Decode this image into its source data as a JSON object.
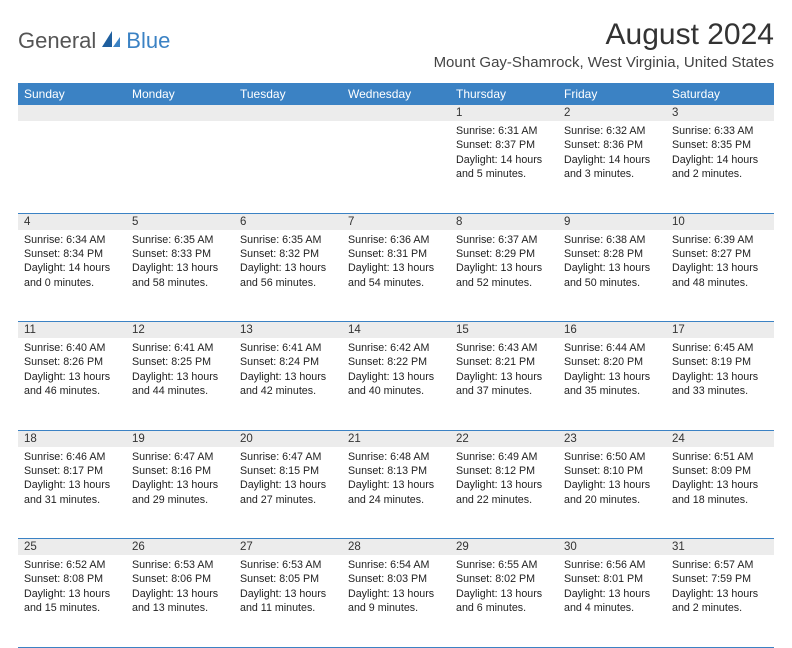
{
  "logo": {
    "text1": "General",
    "text2": "Blue"
  },
  "title": "August 2024",
  "location": "Mount Gay-Shamrock, West Virginia, United States",
  "colors": {
    "header_bg": "#3b82c4",
    "daynum_bg": "#ececec",
    "rule": "#3b82c4"
  },
  "dayHeaders": [
    "Sunday",
    "Monday",
    "Tuesday",
    "Wednesday",
    "Thursday",
    "Friday",
    "Saturday"
  ],
  "weeks": [
    [
      null,
      null,
      null,
      null,
      {
        "n": "1",
        "sr": "6:31 AM",
        "ss": "8:37 PM",
        "dl": "14 hours and 5 minutes."
      },
      {
        "n": "2",
        "sr": "6:32 AM",
        "ss": "8:36 PM",
        "dl": "14 hours and 3 minutes."
      },
      {
        "n": "3",
        "sr": "6:33 AM",
        "ss": "8:35 PM",
        "dl": "14 hours and 2 minutes."
      }
    ],
    [
      {
        "n": "4",
        "sr": "6:34 AM",
        "ss": "8:34 PM",
        "dl": "14 hours and 0 minutes."
      },
      {
        "n": "5",
        "sr": "6:35 AM",
        "ss": "8:33 PM",
        "dl": "13 hours and 58 minutes."
      },
      {
        "n": "6",
        "sr": "6:35 AM",
        "ss": "8:32 PM",
        "dl": "13 hours and 56 minutes."
      },
      {
        "n": "7",
        "sr": "6:36 AM",
        "ss": "8:31 PM",
        "dl": "13 hours and 54 minutes."
      },
      {
        "n": "8",
        "sr": "6:37 AM",
        "ss": "8:29 PM",
        "dl": "13 hours and 52 minutes."
      },
      {
        "n": "9",
        "sr": "6:38 AM",
        "ss": "8:28 PM",
        "dl": "13 hours and 50 minutes."
      },
      {
        "n": "10",
        "sr": "6:39 AM",
        "ss": "8:27 PM",
        "dl": "13 hours and 48 minutes."
      }
    ],
    [
      {
        "n": "11",
        "sr": "6:40 AM",
        "ss": "8:26 PM",
        "dl": "13 hours and 46 minutes."
      },
      {
        "n": "12",
        "sr": "6:41 AM",
        "ss": "8:25 PM",
        "dl": "13 hours and 44 minutes."
      },
      {
        "n": "13",
        "sr": "6:41 AM",
        "ss": "8:24 PM",
        "dl": "13 hours and 42 minutes."
      },
      {
        "n": "14",
        "sr": "6:42 AM",
        "ss": "8:22 PM",
        "dl": "13 hours and 40 minutes."
      },
      {
        "n": "15",
        "sr": "6:43 AM",
        "ss": "8:21 PM",
        "dl": "13 hours and 37 minutes."
      },
      {
        "n": "16",
        "sr": "6:44 AM",
        "ss": "8:20 PM",
        "dl": "13 hours and 35 minutes."
      },
      {
        "n": "17",
        "sr": "6:45 AM",
        "ss": "8:19 PM",
        "dl": "13 hours and 33 minutes."
      }
    ],
    [
      {
        "n": "18",
        "sr": "6:46 AM",
        "ss": "8:17 PM",
        "dl": "13 hours and 31 minutes."
      },
      {
        "n": "19",
        "sr": "6:47 AM",
        "ss": "8:16 PM",
        "dl": "13 hours and 29 minutes."
      },
      {
        "n": "20",
        "sr": "6:47 AM",
        "ss": "8:15 PM",
        "dl": "13 hours and 27 minutes."
      },
      {
        "n": "21",
        "sr": "6:48 AM",
        "ss": "8:13 PM",
        "dl": "13 hours and 24 minutes."
      },
      {
        "n": "22",
        "sr": "6:49 AM",
        "ss": "8:12 PM",
        "dl": "13 hours and 22 minutes."
      },
      {
        "n": "23",
        "sr": "6:50 AM",
        "ss": "8:10 PM",
        "dl": "13 hours and 20 minutes."
      },
      {
        "n": "24",
        "sr": "6:51 AM",
        "ss": "8:09 PM",
        "dl": "13 hours and 18 minutes."
      }
    ],
    [
      {
        "n": "25",
        "sr": "6:52 AM",
        "ss": "8:08 PM",
        "dl": "13 hours and 15 minutes."
      },
      {
        "n": "26",
        "sr": "6:53 AM",
        "ss": "8:06 PM",
        "dl": "13 hours and 13 minutes."
      },
      {
        "n": "27",
        "sr": "6:53 AM",
        "ss": "8:05 PM",
        "dl": "13 hours and 11 minutes."
      },
      {
        "n": "28",
        "sr": "6:54 AM",
        "ss": "8:03 PM",
        "dl": "13 hours and 9 minutes."
      },
      {
        "n": "29",
        "sr": "6:55 AM",
        "ss": "8:02 PM",
        "dl": "13 hours and 6 minutes."
      },
      {
        "n": "30",
        "sr": "6:56 AM",
        "ss": "8:01 PM",
        "dl": "13 hours and 4 minutes."
      },
      {
        "n": "31",
        "sr": "6:57 AM",
        "ss": "7:59 PM",
        "dl": "13 hours and 2 minutes."
      }
    ]
  ],
  "labels": {
    "sunrise": "Sunrise: ",
    "sunset": "Sunset: ",
    "daylight": "Daylight: "
  }
}
